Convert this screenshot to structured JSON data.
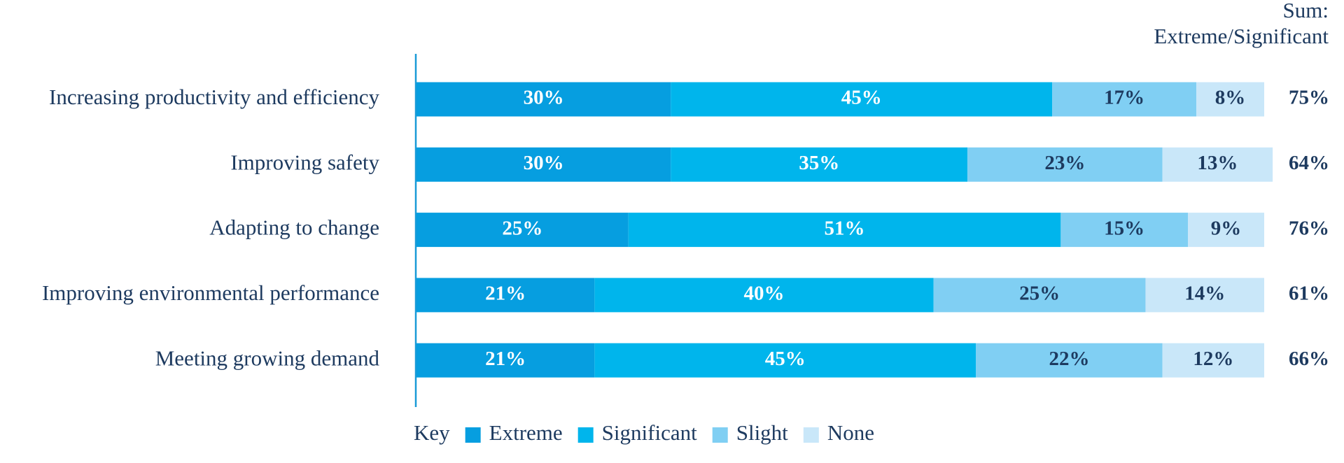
{
  "chart_data": {
    "type": "stacked-bar-horizontal",
    "categories": [
      "Increasing productivity and efficiency",
      "Improving safety",
      "Adapting to change",
      "Improving environmental performance",
      "Meeting growing demand"
    ],
    "series": [
      {
        "name": "Extreme",
        "color": "#069ee0",
        "label_color": "#ffffff",
        "values": [
          30,
          30,
          25,
          21,
          21
        ],
        "value_labels": [
          "30%",
          "30%",
          "25%",
          "21%",
          "21%"
        ]
      },
      {
        "name": "Significant",
        "color": "#00b5ec",
        "label_color": "#ffffff",
        "values": [
          45,
          35,
          51,
          40,
          45
        ],
        "value_labels": [
          "45%",
          "35%",
          "51%",
          "40%",
          "45%"
        ]
      },
      {
        "name": "Slight",
        "color": "#80cff3",
        "label_color": "#1d3a5f",
        "values": [
          17,
          23,
          15,
          25,
          22
        ],
        "value_labels": [
          "17%",
          "23%",
          "15%",
          "25%",
          "22%"
        ]
      },
      {
        "name": "None",
        "color": "#c9e7f9",
        "label_color": "#1d3a5f",
        "values": [
          8,
          13,
          9,
          14,
          12
        ],
        "value_labels": [
          "8%",
          "13%",
          "9%",
          "14%",
          "12%"
        ]
      }
    ],
    "xlim": [
      0,
      100
    ],
    "sum_title": [
      "Sum:",
      "Extreme/Significant"
    ],
    "sum_values": [
      75,
      64,
      76,
      61,
      66
    ],
    "sum_labels": [
      "75%",
      "64%",
      "76%",
      "61%",
      "66%"
    ],
    "legend_title": "Key"
  }
}
